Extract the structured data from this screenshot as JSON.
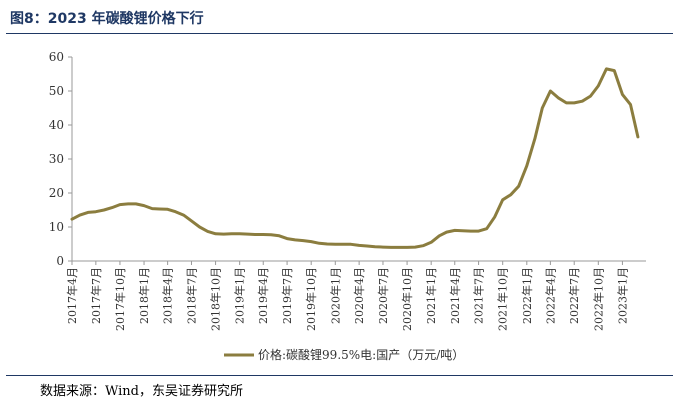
{
  "title": "图8：2023 年碳酸锂价格下行",
  "source": "数据来源：Wind，东吴证券研究所",
  "colors": {
    "line": "#8b7d3f",
    "title": "#1f3864",
    "axis": "#999999"
  },
  "chart_data": {
    "type": "line",
    "title": "图8：2023 年碳酸锂价格下行",
    "xlabel": "",
    "ylabel": "",
    "ylim": [
      0,
      60
    ],
    "yticks": [
      0,
      10,
      20,
      30,
      40,
      50,
      60
    ],
    "grid": false,
    "legend_position": "bottom",
    "categories": [
      "2017年4月",
      "2017年7月",
      "2017年10月",
      "2018年1月",
      "2018年4月",
      "2018年7月",
      "2018年10月",
      "2019年1月",
      "2019年4月",
      "2019年7月",
      "2019年10月",
      "2020年1月",
      "2020年4月",
      "2020年7月",
      "2020年10月",
      "2021年1月",
      "2021年4月",
      "2021年7月",
      "2021年10月",
      "2022年1月",
      "2022年4月",
      "2022年7月",
      "2022年10月",
      "2023年1月"
    ],
    "series": [
      {
        "name": "价格:碳酸锂99.5%电:国产（万元/吨）",
        "points": [
          [
            "2017-04-01",
            12.3
          ],
          [
            "2017-05-01",
            13.5
          ],
          [
            "2017-06-01",
            14.3
          ],
          [
            "2017-07-01",
            14.5
          ],
          [
            "2017-08-01",
            15.0
          ],
          [
            "2017-09-01",
            15.7
          ],
          [
            "2017-10-01",
            16.6
          ],
          [
            "2017-11-01",
            16.8
          ],
          [
            "2017-12-01",
            16.8
          ],
          [
            "2018-01-01",
            16.3
          ],
          [
            "2018-02-01",
            15.4
          ],
          [
            "2018-03-01",
            15.3
          ],
          [
            "2018-04-01",
            15.2
          ],
          [
            "2018-05-01",
            14.5
          ],
          [
            "2018-06-01",
            13.5
          ],
          [
            "2018-07-01",
            11.8
          ],
          [
            "2018-08-01",
            10.0
          ],
          [
            "2018-09-01",
            8.7
          ],
          [
            "2018-10-01",
            8.0
          ],
          [
            "2018-11-01",
            7.9
          ],
          [
            "2018-12-01",
            8.0
          ],
          [
            "2019-01-01",
            8.0
          ],
          [
            "2019-02-01",
            7.9
          ],
          [
            "2019-03-01",
            7.8
          ],
          [
            "2019-04-01",
            7.8
          ],
          [
            "2019-05-01",
            7.7
          ],
          [
            "2019-06-01",
            7.4
          ],
          [
            "2019-07-01",
            6.6
          ],
          [
            "2019-08-01",
            6.2
          ],
          [
            "2019-09-01",
            6.0
          ],
          [
            "2019-10-01",
            5.7
          ],
          [
            "2019-11-01",
            5.2
          ],
          [
            "2019-12-01",
            5.0
          ],
          [
            "2020-01-01",
            4.9
          ],
          [
            "2020-02-01",
            4.9
          ],
          [
            "2020-03-01",
            4.9
          ],
          [
            "2020-04-01",
            4.6
          ],
          [
            "2020-05-01",
            4.4
          ],
          [
            "2020-06-01",
            4.2
          ],
          [
            "2020-07-01",
            4.1
          ],
          [
            "2020-08-01",
            4.0
          ],
          [
            "2020-09-01",
            4.0
          ],
          [
            "2020-10-01",
            4.0
          ],
          [
            "2020-11-01",
            4.1
          ],
          [
            "2020-12-01",
            4.5
          ],
          [
            "2021-01-01",
            5.5
          ],
          [
            "2021-02-01",
            7.4
          ],
          [
            "2021-03-01",
            8.5
          ],
          [
            "2021-04-01",
            9.0
          ],
          [
            "2021-05-01",
            8.9
          ],
          [
            "2021-06-01",
            8.8
          ],
          [
            "2021-07-01",
            8.8
          ],
          [
            "2021-08-01",
            9.5
          ],
          [
            "2021-09-01",
            13.0
          ],
          [
            "2021-10-01",
            18.0
          ],
          [
            "2021-11-01",
            19.5
          ],
          [
            "2021-12-01",
            22.0
          ],
          [
            "2022-01-01",
            28.0
          ],
          [
            "2022-02-01",
            36.0
          ],
          [
            "2022-03-01",
            45.0
          ],
          [
            "2022-04-01",
            50.0
          ],
          [
            "2022-05-01",
            48.0
          ],
          [
            "2022-06-01",
            46.5
          ],
          [
            "2022-07-01",
            46.5
          ],
          [
            "2022-08-01",
            47.0
          ],
          [
            "2022-09-01",
            48.5
          ],
          [
            "2022-10-01",
            51.5
          ],
          [
            "2022-11-01",
            56.5
          ],
          [
            "2022-12-01",
            56.0
          ],
          [
            "2023-01-01",
            49.0
          ],
          [
            "2023-02-01",
            46.0
          ],
          [
            "2023-03-01",
            36.5
          ]
        ]
      }
    ]
  }
}
